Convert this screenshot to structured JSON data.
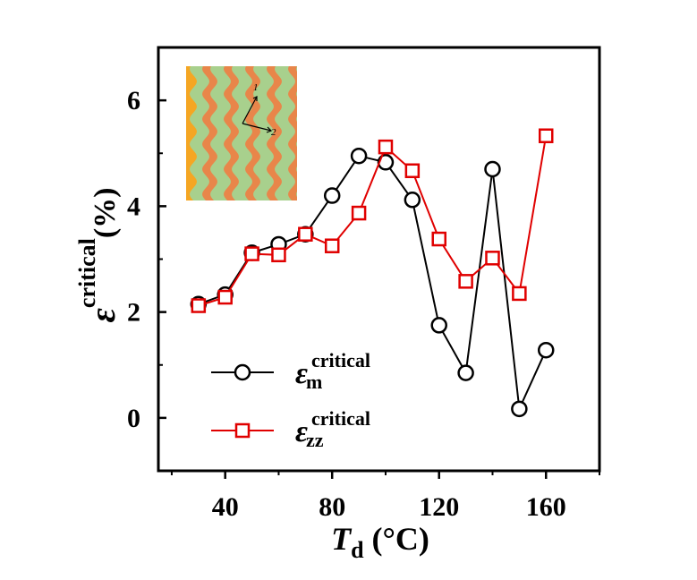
{
  "chart_data": {
    "type": "line",
    "xlabel_main": "T",
    "xlabel_sub": "d",
    "xlabel_unit": " (°C)",
    "ylabel_symbol": "ε",
    "ylabel_sup": "critical",
    "ylabel_unit": "(%)",
    "xlim": [
      15,
      180
    ],
    "ylim": [
      -1,
      7
    ],
    "xticks": [
      40,
      80,
      120,
      160
    ],
    "yticks": [
      0,
      2,
      4,
      6
    ],
    "x": [
      30,
      40,
      50,
      60,
      70,
      80,
      90,
      100,
      110,
      120,
      130,
      140,
      150,
      160
    ],
    "series": [
      {
        "name_symbol": "ε",
        "name_sub": "m",
        "name_sup": "critical",
        "marker": "circle",
        "color": "#000000",
        "values": [
          2.15,
          2.33,
          3.12,
          3.28,
          3.47,
          4.2,
          4.95,
          4.83,
          4.12,
          1.75,
          0.85,
          4.7,
          0.17,
          1.28
        ]
      },
      {
        "name_symbol": "ε",
        "name_sub": "zz",
        "name_sup": "critical",
        "marker": "square",
        "color": "#e00000",
        "values": [
          2.12,
          2.28,
          3.1,
          3.08,
          3.47,
          3.25,
          3.87,
          5.12,
          4.67,
          3.38,
          2.58,
          3.02,
          2.35,
          5.33
        ]
      }
    ],
    "legend_position": "bottom-left",
    "inset": {
      "axis_label_1": "1",
      "axis_label_2": "2",
      "colors": [
        "#f5a623",
        "#a8d08d",
        "#e8864a"
      ]
    }
  }
}
